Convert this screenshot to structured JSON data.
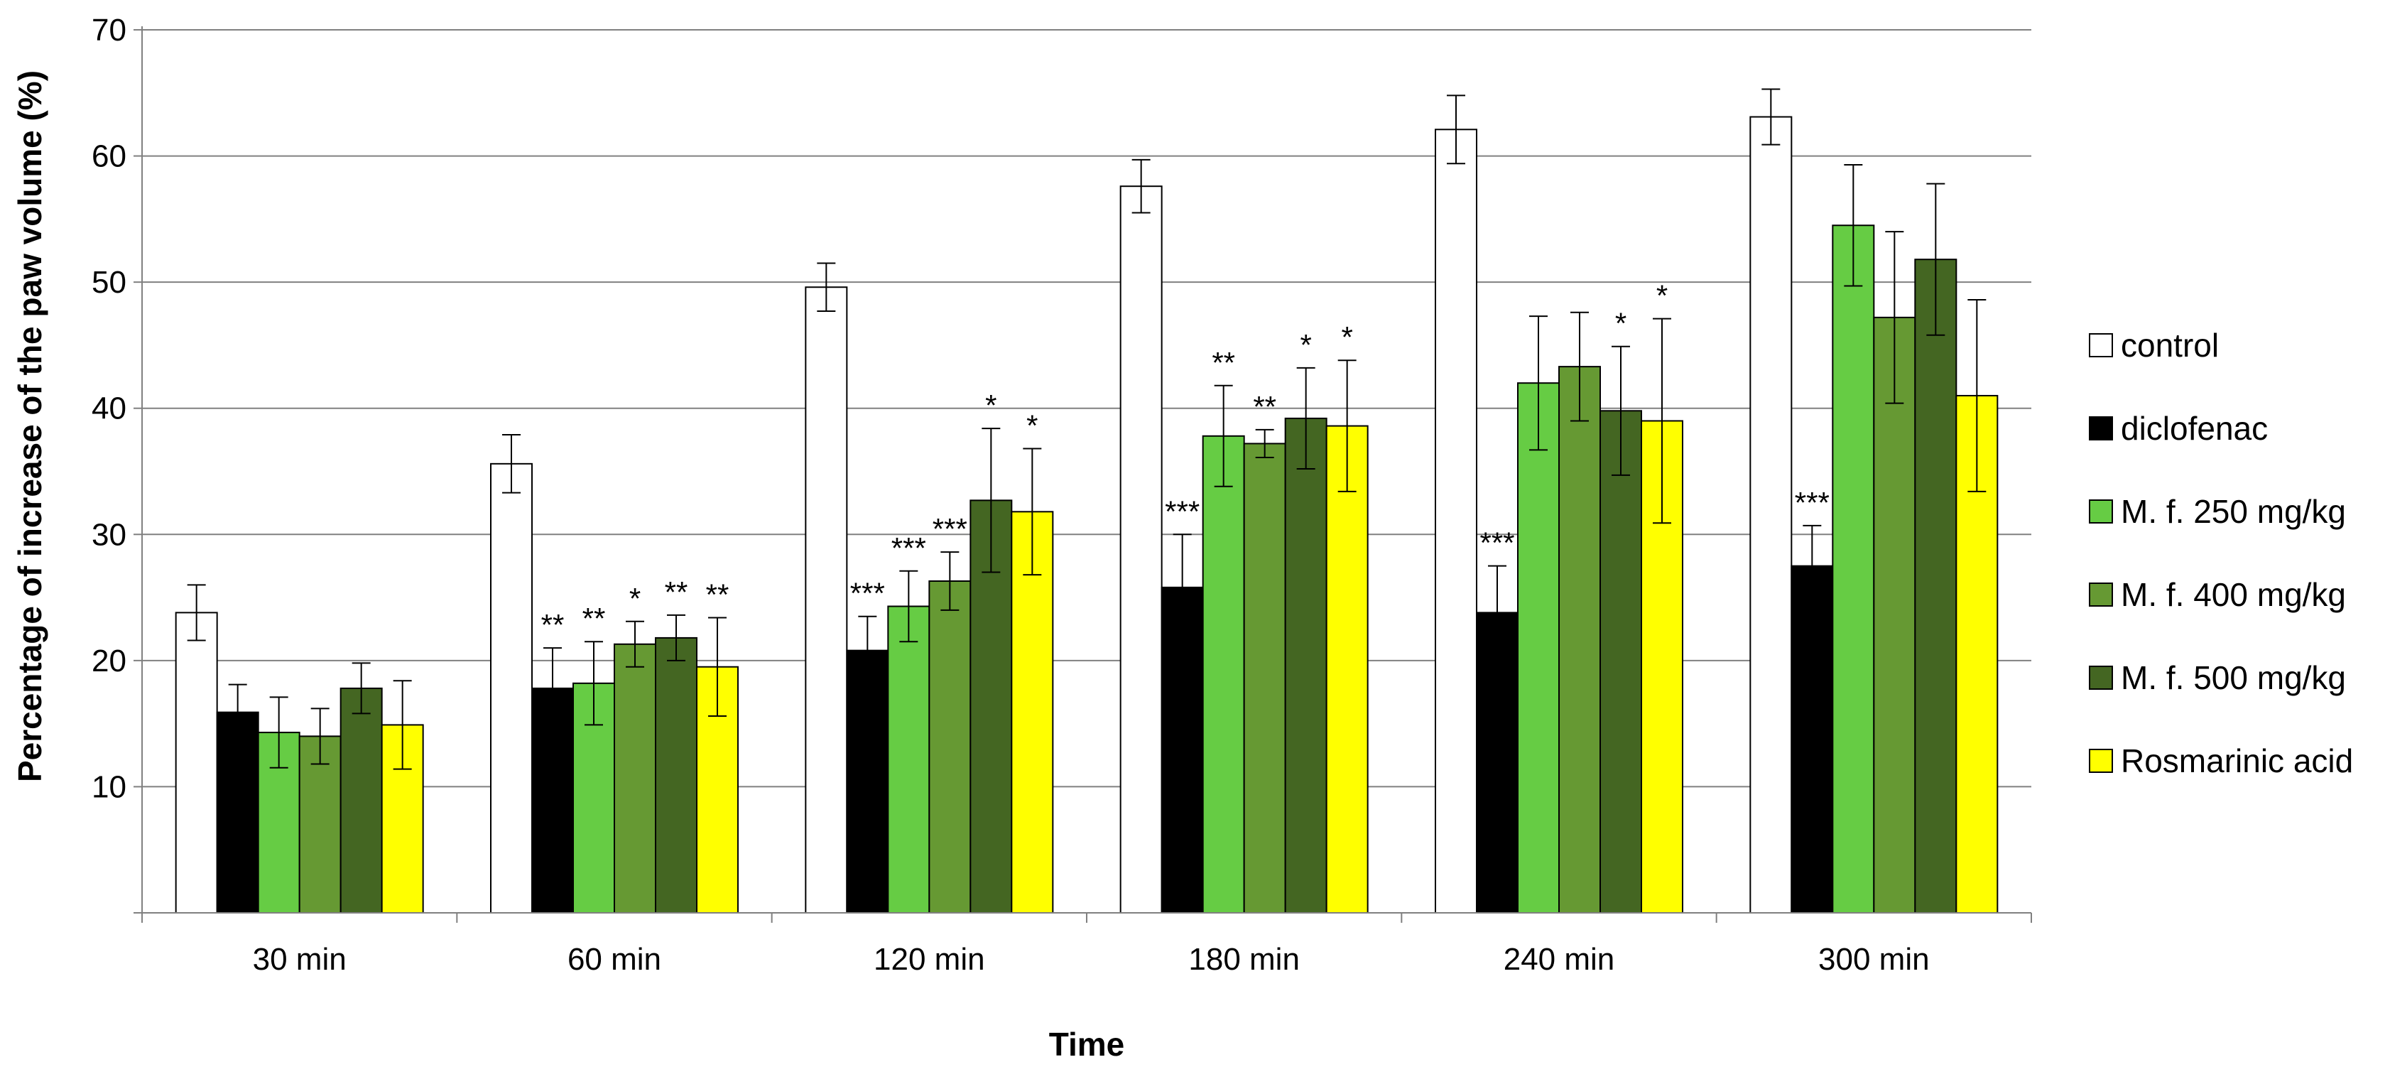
{
  "chart_data": {
    "type": "bar",
    "title": "",
    "xlabel": "Time",
    "ylabel": "Percentage of increase of the paw volume (%)",
    "ylim": [
      0,
      70
    ],
    "yticks": [
      "10",
      "20",
      "30",
      "40",
      "50",
      "60",
      "70"
    ],
    "grid": true,
    "legend_position": "right",
    "categories": [
      "30 min",
      "60 min",
      "120 min",
      "180 min",
      "240 min",
      "300 min"
    ],
    "series": [
      {
        "name": "control",
        "color": "#ffffff",
        "values": [
          23.8,
          35.6,
          49.6,
          57.6,
          62.1,
          63.1
        ],
        "errors": [
          2.2,
          2.3,
          1.9,
          2.1,
          2.7,
          2.2
        ],
        "significance": [
          "",
          "",
          "",
          "",
          "",
          ""
        ]
      },
      {
        "name": "diclofenac",
        "color": "#000000",
        "values": [
          15.9,
          17.8,
          20.8,
          25.8,
          23.8,
          27.5
        ],
        "errors": [
          2.2,
          3.2,
          2.7,
          4.2,
          3.7,
          3.2
        ],
        "significance": [
          "",
          "**",
          "***",
          "***",
          "***",
          "***"
        ]
      },
      {
        "name": "M. f. 250 mg/kg",
        "color": "#66cc44",
        "values": [
          14.3,
          18.2,
          24.3,
          37.8,
          42.0,
          54.5
        ],
        "errors": [
          2.8,
          3.3,
          2.8,
          4.0,
          5.3,
          4.8
        ],
        "significance": [
          "",
          "**",
          "***",
          "**",
          "",
          ""
        ]
      },
      {
        "name": "M. f. 400 mg/kg",
        "color": "#669933",
        "values": [
          14.0,
          21.3,
          26.3,
          37.2,
          43.3,
          47.2
        ],
        "errors": [
          2.2,
          1.8,
          2.3,
          1.1,
          4.3,
          6.8
        ],
        "significance": [
          "",
          "*",
          "***",
          "**",
          "",
          ""
        ]
      },
      {
        "name": "M. f. 500 mg/kg",
        "color": "#446622",
        "values": [
          17.8,
          21.8,
          32.7,
          39.2,
          39.8,
          51.8
        ],
        "errors": [
          2.0,
          1.8,
          5.7,
          4.0,
          5.1,
          6.0
        ],
        "significance": [
          "",
          "**",
          "*",
          "*",
          "*",
          ""
        ]
      },
      {
        "name": "Rosmarinic acid",
        "color": "#ffff00",
        "values": [
          14.9,
          19.5,
          31.8,
          38.6,
          39.0,
          41.0
        ],
        "errors": [
          3.5,
          3.9,
          5.0,
          5.2,
          8.1,
          7.6
        ],
        "significance": [
          "",
          "**",
          "*",
          "*",
          "*",
          ""
        ]
      }
    ]
  }
}
